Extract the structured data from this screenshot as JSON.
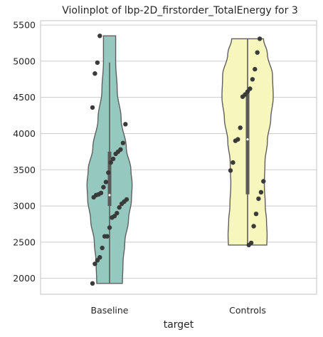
{
  "chart_data": {
    "type": "violin",
    "title": "Violinplot of lbp-2D_firstorder_TotalEnergy for 3",
    "xlabel": "target",
    "ylabel": "",
    "ylim": [
      1780,
      5560
    ],
    "yticks": [
      2000,
      2500,
      3000,
      3500,
      4000,
      4500,
      5000,
      5500
    ],
    "categories": [
      "Baseline",
      "Controls"
    ],
    "colors": [
      "#95c9bf",
      "#f7f7bd"
    ],
    "grid": "horizontal",
    "series": [
      {
        "category": "Baseline",
        "points": [
          1930,
          2200,
          2250,
          2290,
          2420,
          2580,
          2580,
          2700,
          2840,
          2860,
          2900,
          2980,
          3030,
          3060,
          3090,
          3120,
          3150,
          3160,
          3180,
          3260,
          3330,
          3460,
          3600,
          3650,
          3720,
          3750,
          3780,
          3870,
          4130,
          4360,
          4830,
          4980,
          5350
        ],
        "box": {
          "q1": 3000,
          "median": 3150,
          "q3": 3750,
          "whisker_low": 1930,
          "whisker_high": 4980
        },
        "violin_profile": [
          [
            1930,
            0.42
          ],
          [
            2200,
            0.44
          ],
          [
            2500,
            0.5
          ],
          [
            2800,
            0.62
          ],
          [
            3100,
            0.72
          ],
          [
            3300,
            0.74
          ],
          [
            3500,
            0.7
          ],
          [
            3800,
            0.55
          ],
          [
            4200,
            0.38
          ],
          [
            4600,
            0.25
          ],
          [
            5000,
            0.2
          ],
          [
            5350,
            0.2
          ]
        ]
      },
      {
        "category": "Controls",
        "points": [
          2460,
          2490,
          2720,
          2890,
          3100,
          3190,
          3340,
          3490,
          3600,
          3900,
          3920,
          4080,
          4510,
          4540,
          4580,
          4620,
          4750,
          4890,
          5120,
          5310
        ],
        "box": {
          "q1": 3160,
          "median": 3920,
          "q3": 4600,
          "whisker_low": 2460,
          "whisker_high": 5310
        },
        "violin_profile": [
          [
            2460,
            0.63
          ],
          [
            2600,
            0.64
          ],
          [
            2800,
            0.62
          ],
          [
            3000,
            0.58
          ],
          [
            3300,
            0.55
          ],
          [
            3600,
            0.57
          ],
          [
            3900,
            0.65
          ],
          [
            4200,
            0.76
          ],
          [
            4500,
            0.84
          ],
          [
            4800,
            0.82
          ],
          [
            5100,
            0.65
          ],
          [
            5310,
            0.52
          ]
        ]
      }
    ]
  }
}
